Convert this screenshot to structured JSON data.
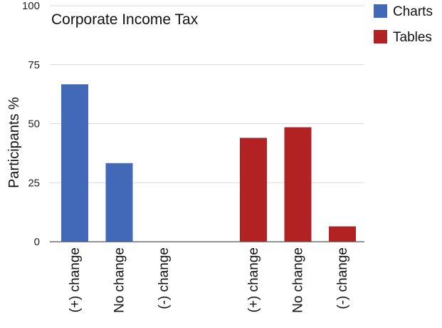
{
  "chart_data": {
    "type": "bar",
    "title": "Corporate Income Tax",
    "ylabel": "Participants %",
    "xlabel": "",
    "ylim": [
      0,
      100
    ],
    "yticks": [
      0,
      25,
      50,
      75,
      100
    ],
    "grid": true,
    "legend_position": "top-right",
    "series": [
      {
        "name": "Charts",
        "color": "#4169b8",
        "categories": [
          "(+) change",
          "No change",
          "(-) change"
        ],
        "values": [
          66.7,
          33.3,
          0
        ]
      },
      {
        "name": "Tables",
        "color": "#b22222",
        "categories": [
          "(+) change",
          "No change",
          "(-) change"
        ],
        "values": [
          44,
          48.5,
          6.5
        ]
      }
    ]
  }
}
